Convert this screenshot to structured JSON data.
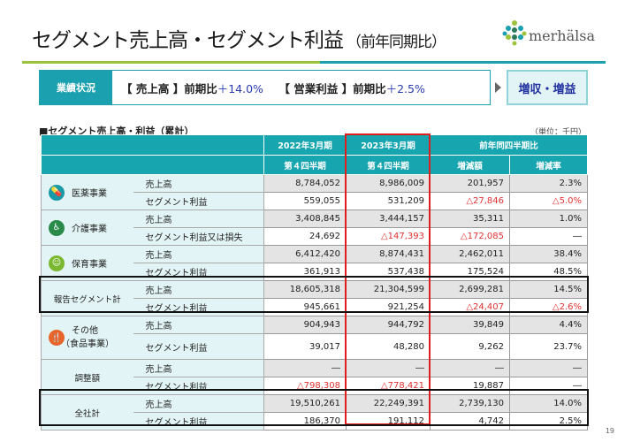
{
  "header": {
    "title": "セグメント売上高・セグメント利益",
    "title_sub": "（前年同期比）",
    "logo_text": "merhälsa"
  },
  "summary": {
    "label": "業績状況",
    "sales_label": "【 売上高 】前期比",
    "sales_value": "＋14.0%",
    "op_label": "【 営業利益 】前期比",
    "op_value": "＋2.5%",
    "result": "増収・増益"
  },
  "section_title": "■セグメント売上高・利益（累計）",
  "unit": "（単位：千円）",
  "table": {
    "headers": {
      "fy2022": "2022年3月期",
      "fy2023": "2023年3月期",
      "yoy": "前年同四半期比",
      "q4a": "第４四半期",
      "q4b": "第４四半期",
      "diff": "増減額",
      "rate": "増減率"
    },
    "groups": [
      {
        "name": "医薬事業",
        "icon": "pill-icon",
        "color": "#1a9aa8",
        "rows": [
          {
            "item": "売上高",
            "v2022": "8,784,052",
            "v2023": "8,986,009",
            "diff": "201,957",
            "rate": "2.3%"
          },
          {
            "item": "セグメント利益",
            "v2022": "559,055",
            "v2023": "531,209",
            "diff": "△27,846",
            "rate": "△5.0%"
          }
        ]
      },
      {
        "name": "介護事業",
        "icon": "wheelchair-icon",
        "color": "#2a8a4a",
        "rows": [
          {
            "item": "売上高",
            "v2022": "3,408,845",
            "v2023": "3,444,157",
            "diff": "35,311",
            "rate": "1.0%"
          },
          {
            "item": "セグメント利益又は損失",
            "v2022": "24,692",
            "v2023": "△147,393",
            "diff": "△172,085",
            "rate": "―"
          }
        ]
      },
      {
        "name": "保育事業",
        "icon": "child-face-icon",
        "color": "#7ab82f",
        "rows": [
          {
            "item": "売上高",
            "v2022": "6,412,420",
            "v2023": "8,874,431",
            "diff": "2,462,011",
            "rate": "38.4%"
          },
          {
            "item": "セグメント利益",
            "v2022": "361,913",
            "v2023": "537,438",
            "diff": "175,524",
            "rate": "48.5%"
          }
        ]
      },
      {
        "name": "報告セグメント計",
        "rows": [
          {
            "item": "売上高",
            "v2022": "18,605,318",
            "v2023": "21,304,599",
            "diff": "2,699,281",
            "rate": "14.5%"
          },
          {
            "item": "セグメント利益",
            "v2022": "945,661",
            "v2023": "921,254",
            "diff": "△24,407",
            "rate": "△2.6%"
          }
        ]
      },
      {
        "name": "その他",
        "name2": "（食品事業）",
        "icon": "fork-knife-icon",
        "color": "#e8642a",
        "rows": [
          {
            "item": "売上高",
            "v2022": "904,943",
            "v2023": "944,792",
            "diff": "39,849",
            "rate": "4.4%"
          },
          {
            "item": "セグメント利益",
            "v2022": "39,017",
            "v2023": "48,280",
            "diff": "9,262",
            "rate": "23.7%"
          }
        ]
      },
      {
        "name": "調整額",
        "rows": [
          {
            "item": "売上高",
            "v2022": "―",
            "v2023": "―",
            "diff": "―",
            "rate": "―"
          },
          {
            "item": "セグメント利益",
            "v2022": "△798,308",
            "v2023": "△778,421",
            "diff": "19,887",
            "rate": "―"
          }
        ]
      },
      {
        "name": "全社計",
        "rows": [
          {
            "item": "売上高",
            "v2022": "19,510,261",
            "v2023": "22,249,391",
            "diff": "2,739,130",
            "rate": "14.0%"
          },
          {
            "item": "セグメント利益",
            "v2022": "186,370",
            "v2023": "191,112",
            "diff": "4,742",
            "rate": "2.5%"
          }
        ]
      }
    ]
  },
  "page_number": "19"
}
